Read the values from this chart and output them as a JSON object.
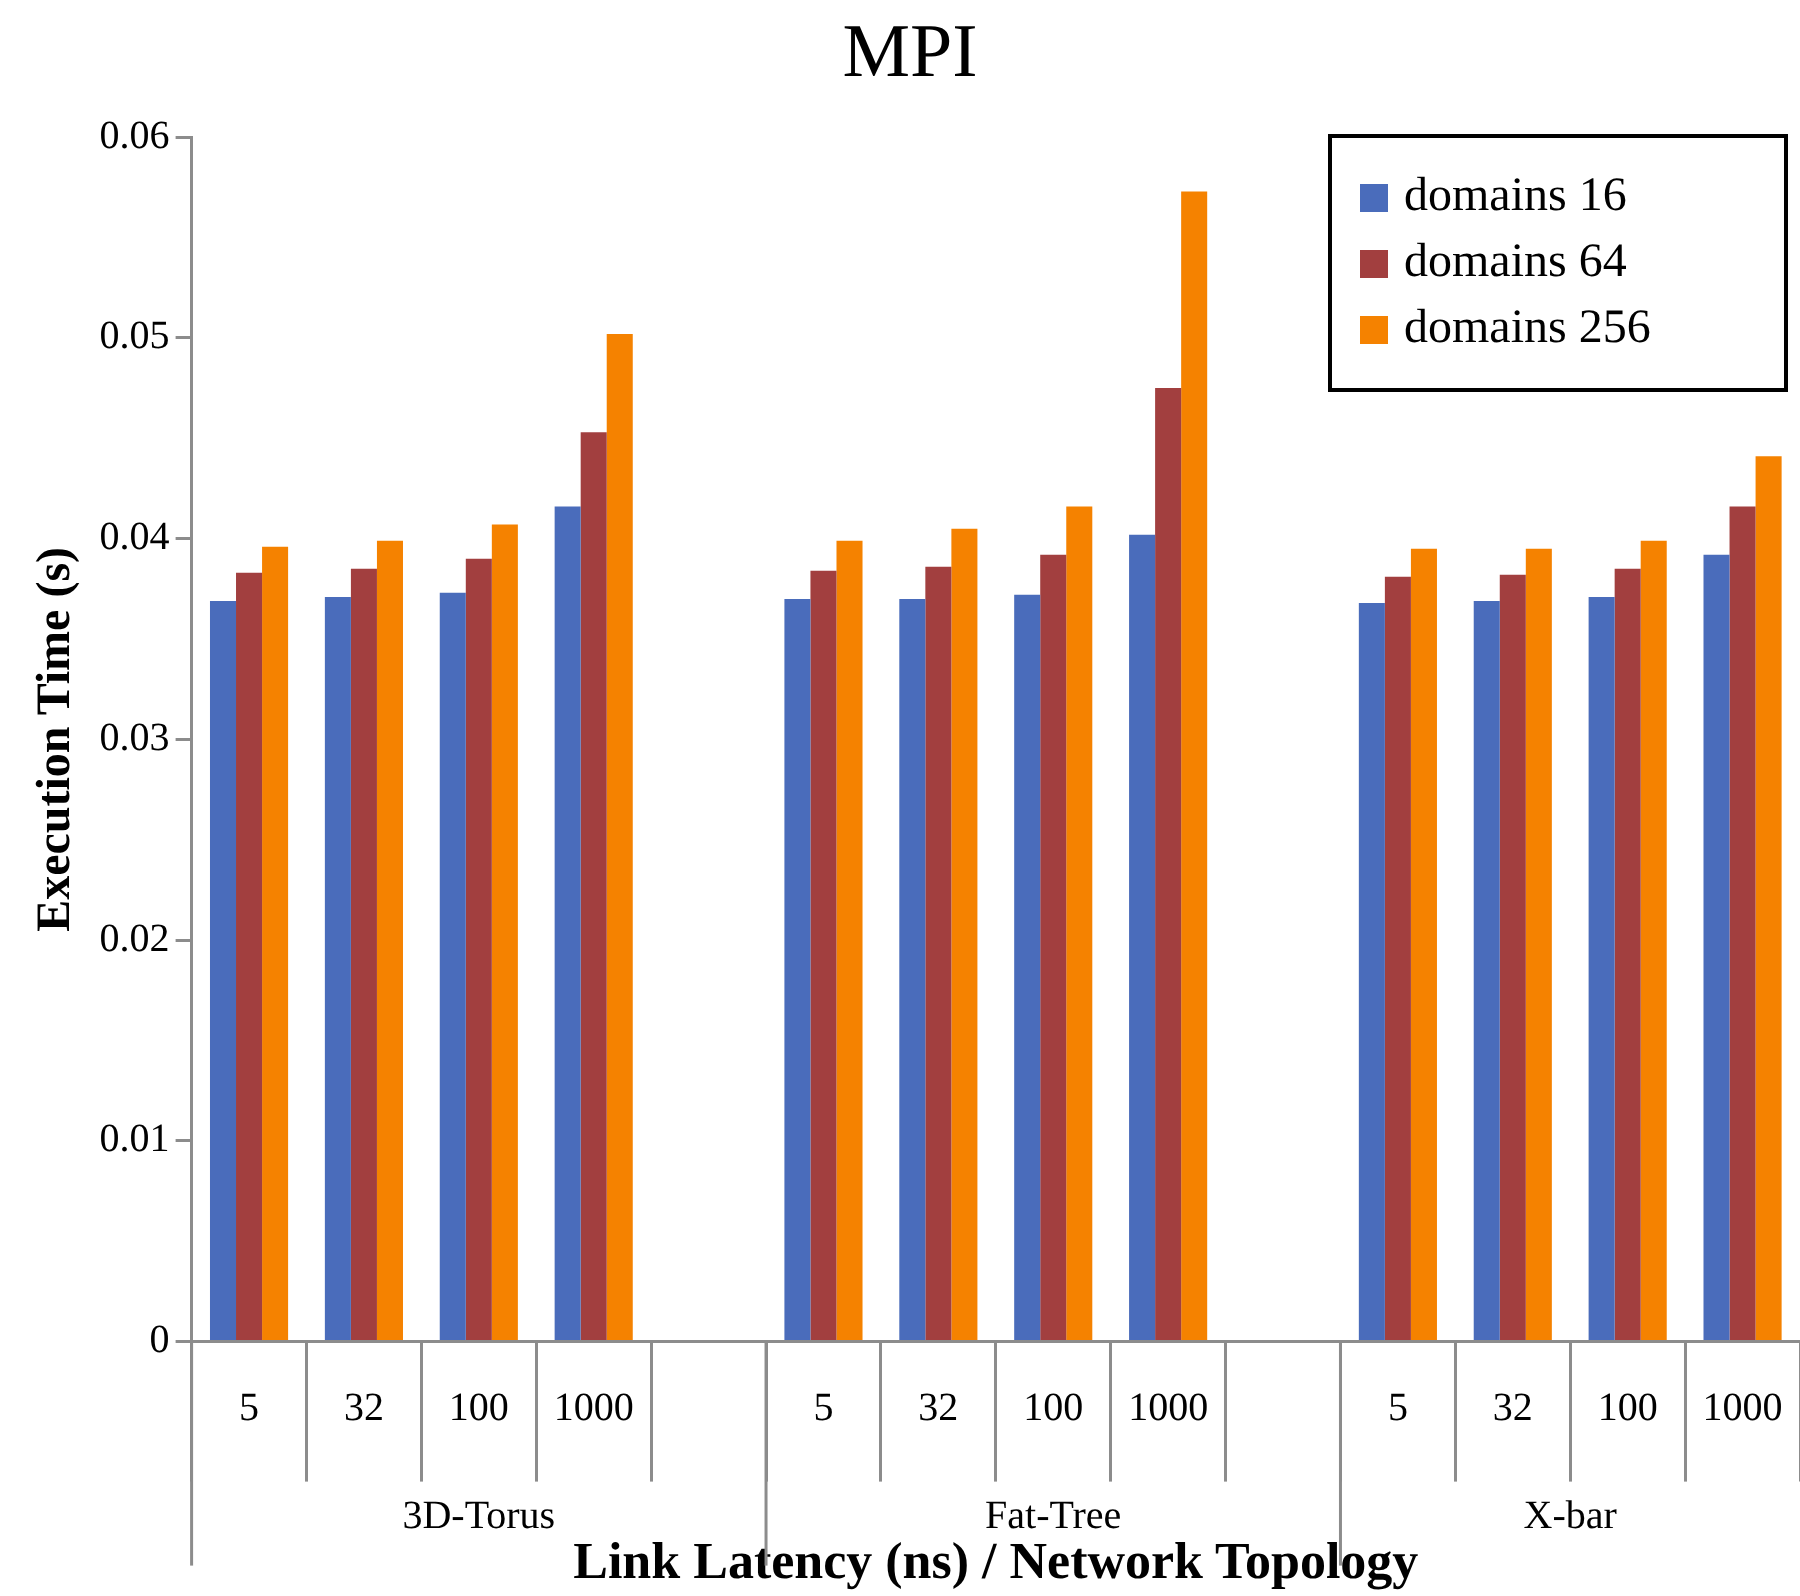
{
  "chart_data": {
    "type": "bar",
    "title": "MPI",
    "xlabel": "Link Latency (ns) / Network Topology",
    "ylabel": "Execution Time (s)",
    "categories": [
      "5",
      "32",
      "100",
      "1000",
      null,
      "5",
      "32",
      "100",
      "1000",
      null,
      "5",
      "32",
      "100",
      "1000"
    ],
    "series": [
      {
        "name": "domains 16",
        "color": "#4a6cbb",
        "values": [
          0.0369,
          0.0371,
          0.0373,
          0.0416,
          null,
          0.037,
          0.037,
          0.0372,
          0.0402,
          null,
          0.0368,
          0.0369,
          0.0371,
          0.0392
        ]
      },
      {
        "name": "domains 64",
        "color": "#a23f3f",
        "values": [
          0.0383,
          0.0385,
          0.039,
          0.0453,
          null,
          0.0384,
          0.0386,
          0.0392,
          0.0475,
          null,
          0.0381,
          0.0382,
          0.0385,
          0.0416
        ]
      },
      {
        "name": "domains 256",
        "color": "#f58200",
        "values": [
          0.0396,
          0.0399,
          0.0407,
          0.0502,
          null,
          0.0399,
          0.0405,
          0.0416,
          0.0573,
          null,
          0.0395,
          0.0395,
          0.0399,
          0.0441
        ]
      }
    ],
    "annotations": [
      "3D-Torus",
      "Fat-Tree",
      "X-bar"
    ],
    "ylim": [
      0,
      0.06
    ],
    "yticks": [
      0,
      0.01,
      0.02,
      0.03,
      0.04,
      0.05,
      0.06
    ],
    "grid": false,
    "legend": "top right"
  }
}
